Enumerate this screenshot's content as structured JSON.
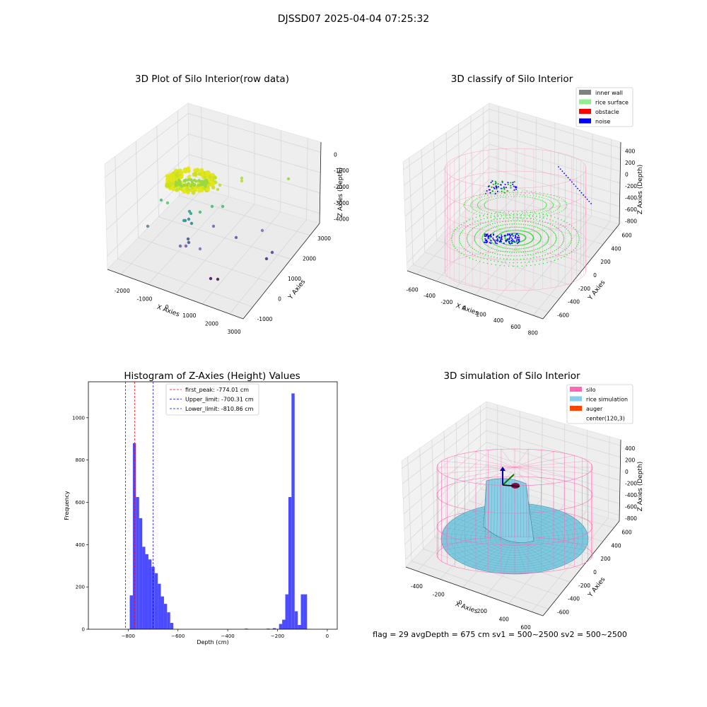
{
  "figure_title": "DJSSD07 2025-04-04 07:25:32",
  "status_line": "flag = 29  avgDepth = 675 cm  sv1 = 500~2500  sv2 = 500~2500",
  "chart_data": [
    {
      "type": "scatter3d",
      "title": "3D Plot of Silo Interior(row data)",
      "xlabel": "X Axies",
      "ylabel": "Y Axies",
      "zlabel": "Z Axies (Depth)",
      "xticks": [
        "-2000",
        "-1000",
        "0",
        "1000",
        "2000",
        "3000"
      ],
      "yticks": [
        "-1000",
        "0",
        "1000",
        "2000",
        "3000"
      ],
      "zticks": [
        "0",
        "-1000",
        "-2000",
        "-3000",
        "-4000"
      ],
      "grid": true,
      "colormap": "viridis"
    },
    {
      "type": "scatter3d",
      "title": "3D classify of Silo Interior",
      "xlabel": "X Axies",
      "ylabel": "Y Axies",
      "zlabel": "Z Axies (Depth)",
      "xticks": [
        "-600",
        "-400",
        "-200",
        "0",
        "200",
        "400",
        "600",
        "800"
      ],
      "yticks": [
        "-600",
        "-400",
        "-200",
        "0",
        "200",
        "400",
        "600"
      ],
      "zticks": [
        "400",
        "200",
        "0",
        "-200",
        "-400",
        "-600",
        "-800"
      ],
      "legend_position": "top-right",
      "legend": [
        {
          "label": "inner wall",
          "color": "#808080"
        },
        {
          "label": "rice surface",
          "color": "#90ee90"
        },
        {
          "label": "obstacle",
          "color": "#ff0000"
        },
        {
          "label": "noise",
          "color": "#0000ff"
        }
      ],
      "grid": true
    },
    {
      "type": "bar",
      "title": "Histogram of Z-Axies (Height) Values",
      "xlabel": "Depth (cm)",
      "ylabel": "Frequency",
      "xlim": [
        -960,
        40
      ],
      "ylim": [
        0,
        1170
      ],
      "xticks": [
        -800,
        -600,
        -400,
        -200,
        0
      ],
      "yticks": [
        0,
        200,
        400,
        600,
        800,
        1000
      ],
      "bar_color": "#4b4bff",
      "bin_width": 12.5,
      "bins": [
        {
          "x": -787.5,
          "count": 160
        },
        {
          "x": -775,
          "count": 880
        },
        {
          "x": -762.5,
          "count": 625
        },
        {
          "x": -750,
          "count": 525
        },
        {
          "x": -737.5,
          "count": 390
        },
        {
          "x": -725,
          "count": 355
        },
        {
          "x": -712.5,
          "count": 330
        },
        {
          "x": -700,
          "count": 295
        },
        {
          "x": -687.5,
          "count": 265
        },
        {
          "x": -675,
          "count": 215
        },
        {
          "x": -662.5,
          "count": 155
        },
        {
          "x": -650,
          "count": 120
        },
        {
          "x": -637.5,
          "count": 80
        },
        {
          "x": -625,
          "count": 30
        },
        {
          "x": -325,
          "count": 3
        },
        {
          "x": -237.5,
          "count": 3
        },
        {
          "x": -212.5,
          "count": 5
        },
        {
          "x": -187.5,
          "count": 25
        },
        {
          "x": -175,
          "count": 45
        },
        {
          "x": -162.5,
          "count": 165
        },
        {
          "x": -150,
          "count": 625
        },
        {
          "x": -137.5,
          "count": 1115
        },
        {
          "x": -125,
          "count": 85
        },
        {
          "x": -112.5,
          "count": 20
        },
        {
          "x": -100,
          "count": 165
        },
        {
          "x": -87.5,
          "count": 165
        }
      ],
      "vlines": [
        {
          "label": "first_peak: -774.01 cm",
          "x": -774.01,
          "color": "#ff0000"
        },
        {
          "label": "Upper_limit: -700.31 cm",
          "x": -700.31,
          "color": "#0000ff"
        },
        {
          "label": "Lower_limit: -810.86 cm",
          "x": -810.86,
          "color": "#0000ff"
        }
      ],
      "legend_position": "top-center"
    },
    {
      "type": "surface3d",
      "title": "3D simulation of Silo Interior",
      "xlabel": "X Axies",
      "ylabel": "Y Axies",
      "zlabel": "Z Axies (Depth)",
      "xticks": [
        "-400",
        "-200",
        "0",
        "200",
        "400",
        "600"
      ],
      "yticks": [
        "-600",
        "-400",
        "-200",
        "0",
        "200",
        "400",
        "600"
      ],
      "zticks": [
        "400",
        "200",
        "0",
        "-200",
        "-400",
        "-600",
        "-800"
      ],
      "legend_position": "top-right",
      "legend": [
        {
          "label": "silo",
          "color": "#ff69b4"
        },
        {
          "label": "rice simulation",
          "color": "#87ceeb"
        },
        {
          "label": "auger",
          "color": "#ff4500"
        },
        {
          "label": "center(120,3)",
          "color": "#ffffff"
        }
      ],
      "grid": true
    }
  ]
}
